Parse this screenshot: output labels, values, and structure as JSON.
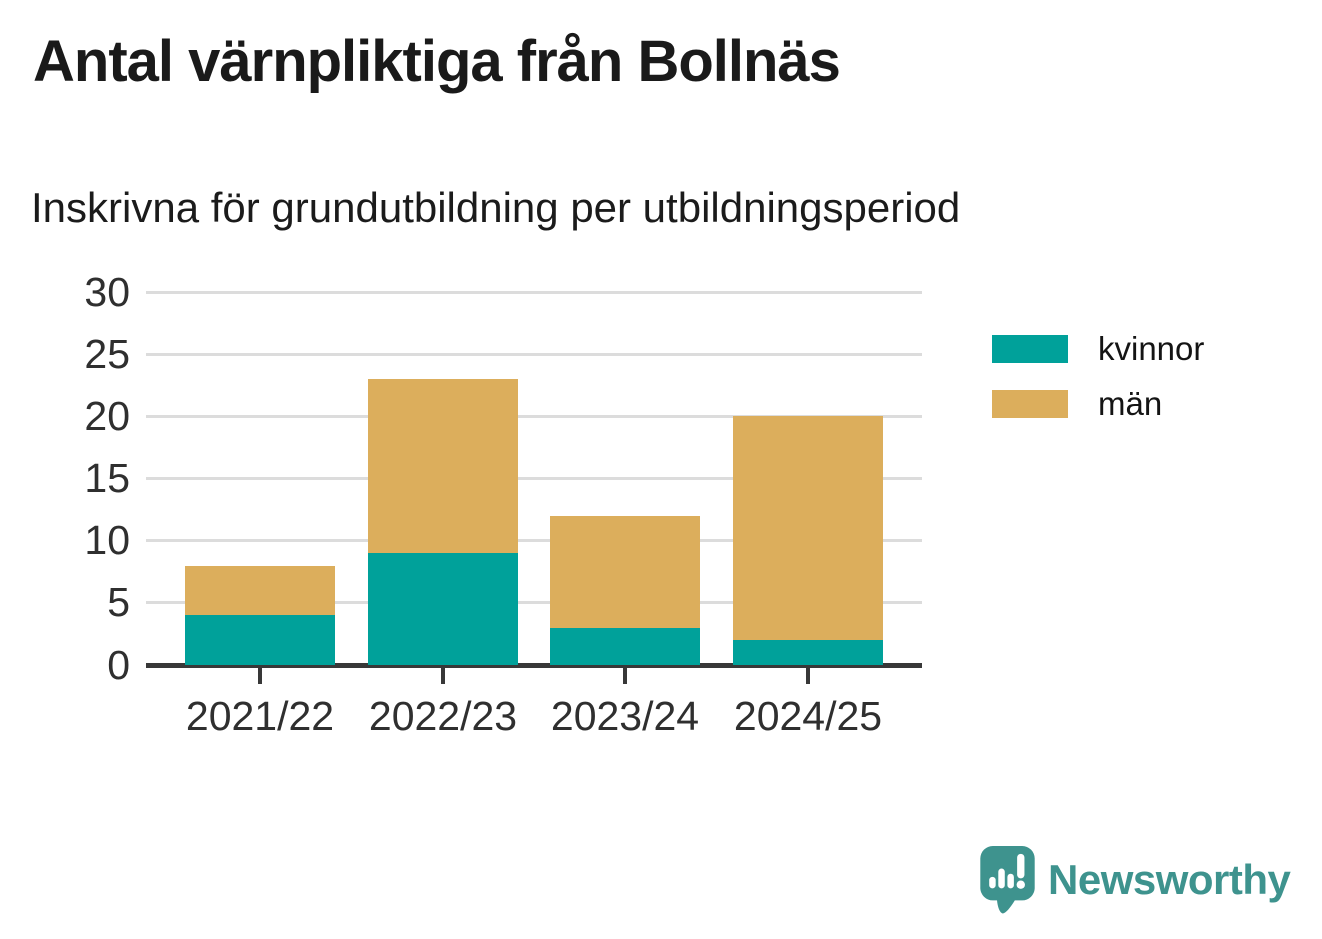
{
  "title": "Antal värnpliktiga från Bollnäs",
  "subtitle": "Inskrivna för grundutbildning per utbildningsperiod",
  "colors": {
    "kvinnor": "#00a19a",
    "man": "#dcae5c",
    "gridline": "#dcdcdc",
    "axis": "#383838",
    "text_dark": "#1a1a1a",
    "tick_label": "#2f2f2f",
    "brand_teal": "#3e938e"
  },
  "chart_data": {
    "type": "bar",
    "stacked": true,
    "title": "Antal värnpliktiga från Bollnäs",
    "subtitle": "Inskrivna för grundutbildning per utbildningsperiod",
    "categories": [
      "2021/22",
      "2022/23",
      "2023/24",
      "2024/25"
    ],
    "series": [
      {
        "name": "kvinnor",
        "color": "#00a19a",
        "values": [
          4,
          9,
          3,
          2
        ]
      },
      {
        "name": "män",
        "color": "#dcae5c",
        "values": [
          4,
          14,
          9,
          18
        ]
      }
    ],
    "totals": [
      8,
      23,
      12,
      20
    ],
    "xlabel": "",
    "ylabel": "",
    "ylim": [
      0,
      30
    ],
    "yticks": [
      0,
      5,
      10,
      15,
      20,
      25,
      30
    ],
    "grid": true,
    "legend_position": "right"
  },
  "legend": {
    "items": [
      {
        "label": "kvinnor",
        "color": "#00a19a"
      },
      {
        "label": "män",
        "color": "#dcae5c"
      }
    ]
  },
  "branding": {
    "name": "Newsworthy",
    "color": "#3e938e"
  }
}
